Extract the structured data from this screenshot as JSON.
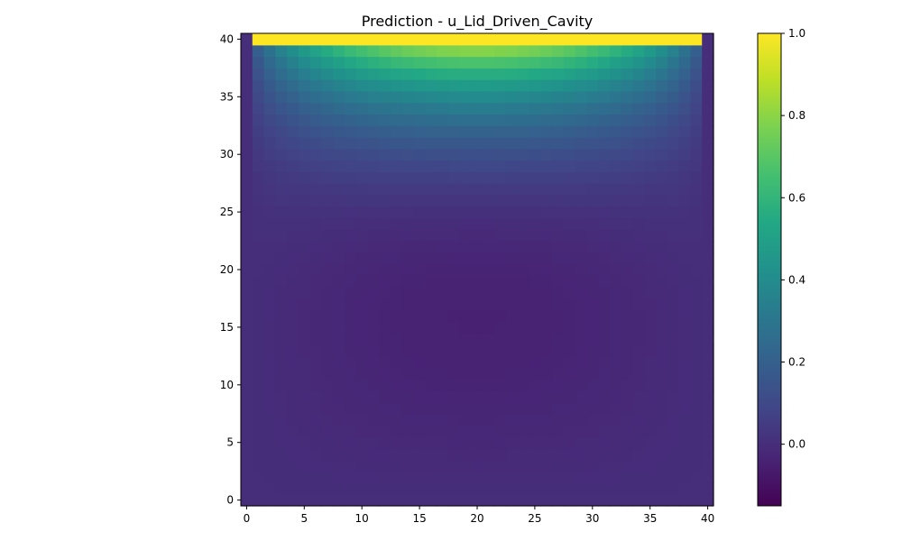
{
  "chart_data": {
    "type": "heatmap",
    "title": "Prediction - u_Lid_Driven_Cavity",
    "xlabel": "",
    "ylabel": "",
    "grid_size": 41,
    "xlim": [
      -0.5,
      40.5
    ],
    "ylim": [
      -0.5,
      40.5
    ],
    "x_ticks": [
      0,
      5,
      10,
      15,
      20,
      25,
      30,
      35,
      40
    ],
    "y_ticks": [
      0,
      5,
      10,
      15,
      20,
      25,
      30,
      35,
      40
    ],
    "colormap": "viridis",
    "colorbar": {
      "vmin": -0.15,
      "vmax": 1.0,
      "ticks": [
        0.0,
        0.2,
        0.4,
        0.6,
        0.8,
        1.0
      ],
      "tick_labels": [
        "0.0",
        "0.2",
        "0.4",
        "0.6",
        "0.8",
        "1.0"
      ]
    },
    "field": {
      "description_values": "u velocity, lid row (y=40) = 1.0 except corners x=0 and x=40 where it equals 0.0; walls 0.0",
      "lid_value": 1.0,
      "lid_corner_value": 0.0,
      "wall_value": 0.0,
      "min_value": -0.05
    },
    "grid": false,
    "legend": "none"
  }
}
